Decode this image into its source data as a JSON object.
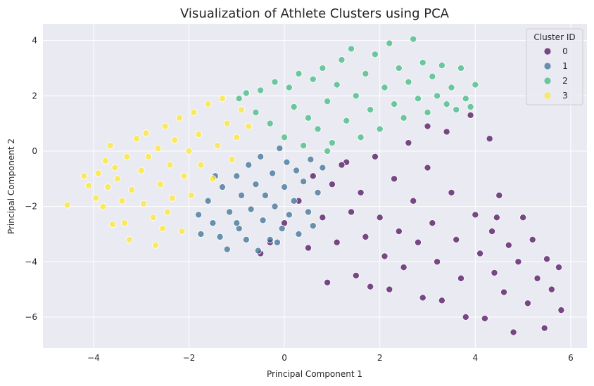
{
  "chart_data": {
    "type": "scatter",
    "title": "Visualization of Athlete Clusters using PCA",
    "xlabel": "Principal Component 1",
    "ylabel": "Principal Component 2",
    "xlim": [
      -5.06,
      6.34
    ],
    "ylim": [
      -7.12,
      4.6
    ],
    "xticks": [
      -4,
      -2,
      0,
      2,
      4,
      6
    ],
    "xtick_labels": [
      "−4",
      "−2",
      "0",
      "2",
      "4",
      "6"
    ],
    "yticks": [
      -6,
      -4,
      -2,
      0,
      2,
      4
    ],
    "ytick_labels": [
      "−6",
      "−4",
      "−2",
      "0",
      "2",
      "4"
    ],
    "grid": true,
    "background": "#eaeaf2",
    "legend": {
      "title": "Cluster ID",
      "placement": "top-right"
    },
    "series": [
      {
        "name": "0",
        "color": "#440154",
        "points": [
          [
            -0.5,
            -3.7
          ],
          [
            -0.3,
            -3.3
          ],
          [
            0.0,
            -2.6
          ],
          [
            0.3,
            -1.8
          ],
          [
            0.5,
            -3.5
          ],
          [
            0.6,
            -0.9
          ],
          [
            0.8,
            -2.4
          ],
          [
            0.9,
            -4.75
          ],
          [
            1.0,
            -1.2
          ],
          [
            1.1,
            -3.3
          ],
          [
            1.3,
            -0.4
          ],
          [
            1.4,
            -2.2
          ],
          [
            1.5,
            -4.5
          ],
          [
            1.6,
            -1.5
          ],
          [
            1.7,
            -3.1
          ],
          [
            1.8,
            -4.9
          ],
          [
            1.9,
            -0.2
          ],
          [
            2.0,
            -2.4
          ],
          [
            2.1,
            -3.8
          ],
          [
            2.2,
            -5.0
          ],
          [
            2.3,
            -1.0
          ],
          [
            2.4,
            -2.9
          ],
          [
            2.5,
            -4.2
          ],
          [
            2.6,
            0.3
          ],
          [
            2.7,
            -1.8
          ],
          [
            2.8,
            -3.3
          ],
          [
            2.9,
            -5.3
          ],
          [
            3.0,
            -0.6
          ],
          [
            3.1,
            -2.6
          ],
          [
            3.2,
            -4.0
          ],
          [
            3.3,
            -5.4
          ],
          [
            3.4,
            0.7
          ],
          [
            3.5,
            -1.5
          ],
          [
            3.6,
            -3.2
          ],
          [
            3.7,
            -4.6
          ],
          [
            3.8,
            -6.0
          ],
          [
            3.9,
            1.3
          ],
          [
            4.0,
            -2.3
          ],
          [
            4.1,
            -3.7
          ],
          [
            4.2,
            -6.05
          ],
          [
            4.3,
            0.45
          ],
          [
            4.35,
            -2.9
          ],
          [
            4.4,
            -4.4
          ],
          [
            4.5,
            -1.6
          ],
          [
            4.6,
            -5.1
          ],
          [
            4.7,
            -3.4
          ],
          [
            4.8,
            -6.55
          ],
          [
            4.9,
            -4.0
          ],
          [
            5.0,
            -2.4
          ],
          [
            5.1,
            -5.5
          ],
          [
            5.2,
            -3.2
          ],
          [
            5.3,
            -4.6
          ],
          [
            5.45,
            -6.4
          ],
          [
            5.5,
            -3.9
          ],
          [
            5.6,
            -5.0
          ],
          [
            5.75,
            -4.2
          ],
          [
            5.8,
            -5.75
          ],
          [
            3.0,
            0.9
          ],
          [
            1.2,
            -0.5
          ],
          [
            4.45,
            -2.4
          ]
        ]
      },
      {
        "name": "1",
        "color": "#31688e",
        "points": [
          [
            -1.8,
            -2.3
          ],
          [
            -1.75,
            -3.0
          ],
          [
            -1.6,
            -1.8
          ],
          [
            -1.5,
            -2.6
          ],
          [
            -1.35,
            -3.1
          ],
          [
            -1.3,
            -1.3
          ],
          [
            -1.2,
            -3.55
          ],
          [
            -1.15,
            -2.2
          ],
          [
            -1.0,
            -0.9
          ],
          [
            -0.95,
            -2.8
          ],
          [
            -0.9,
            -1.6
          ],
          [
            -0.8,
            -3.2
          ],
          [
            -0.75,
            -0.5
          ],
          [
            -0.7,
            -2.1
          ],
          [
            -0.6,
            -1.2
          ],
          [
            -0.55,
            -3.6
          ],
          [
            -0.5,
            -0.2
          ],
          [
            -0.45,
            -2.5
          ],
          [
            -0.4,
            -1.6
          ],
          [
            -0.3,
            -3.2
          ],
          [
            -0.25,
            -0.8
          ],
          [
            -0.2,
            -2.0
          ],
          [
            -0.1,
            0.1
          ],
          [
            -0.05,
            -2.8
          ],
          [
            0.0,
            -1.3
          ],
          [
            0.05,
            -0.4
          ],
          [
            0.1,
            -2.3
          ],
          [
            0.2,
            -1.8
          ],
          [
            0.25,
            -0.7
          ],
          [
            0.3,
            -3.0
          ],
          [
            0.4,
            -1.1
          ],
          [
            0.5,
            -2.2
          ],
          [
            0.55,
            -0.3
          ],
          [
            0.7,
            -1.5
          ],
          [
            0.8,
            -0.6
          ],
          [
            -1.45,
            -0.9
          ],
          [
            -1.0,
            -2.6
          ],
          [
            -0.15,
            -3.3
          ],
          [
            0.6,
            -2.7
          ]
        ]
      },
      {
        "name": "2",
        "color": "#35b779",
        "points": [
          [
            -0.95,
            1.9
          ],
          [
            -0.8,
            2.1
          ],
          [
            -0.6,
            1.4
          ],
          [
            -0.5,
            2.2
          ],
          [
            -0.3,
            1.0
          ],
          [
            -0.2,
            2.5
          ],
          [
            0.0,
            0.5
          ],
          [
            0.1,
            2.3
          ],
          [
            0.2,
            1.6
          ],
          [
            0.3,
            2.8
          ],
          [
            0.4,
            0.2
          ],
          [
            0.5,
            1.2
          ],
          [
            0.6,
            2.6
          ],
          [
            0.7,
            0.8
          ],
          [
            0.8,
            3.0
          ],
          [
            0.9,
            1.8
          ],
          [
            1.0,
            0.3
          ],
          [
            1.1,
            2.4
          ],
          [
            1.2,
            3.3
          ],
          [
            1.3,
            1.1
          ],
          [
            1.4,
            3.7
          ],
          [
            1.5,
            2.0
          ],
          [
            1.6,
            0.5
          ],
          [
            1.7,
            2.8
          ],
          [
            1.8,
            1.5
          ],
          [
            1.9,
            3.5
          ],
          [
            2.0,
            0.8
          ],
          [
            2.1,
            2.3
          ],
          [
            2.2,
            3.9
          ],
          [
            2.3,
            1.7
          ],
          [
            2.4,
            3.0
          ],
          [
            2.5,
            1.2
          ],
          [
            2.6,
            2.5
          ],
          [
            2.7,
            4.05
          ],
          [
            2.8,
            1.9
          ],
          [
            2.9,
            3.2
          ],
          [
            3.0,
            1.4
          ],
          [
            3.1,
            2.7
          ],
          [
            3.2,
            2.0
          ],
          [
            3.3,
            3.1
          ],
          [
            3.4,
            1.7
          ],
          [
            3.5,
            2.3
          ],
          [
            3.6,
            1.5
          ],
          [
            3.7,
            3.0
          ],
          [
            3.8,
            1.9
          ],
          [
            4.0,
            2.4
          ],
          [
            3.9,
            1.6
          ],
          [
            0.9,
            0.0
          ]
        ]
      },
      {
        "name": "3",
        "color": "#fde725",
        "points": [
          [
            -4.55,
            -1.95
          ],
          [
            -4.2,
            -0.9
          ],
          [
            -4.1,
            -1.25
          ],
          [
            -3.95,
            -1.7
          ],
          [
            -3.9,
            -0.8
          ],
          [
            -3.8,
            -2.0
          ],
          [
            -3.75,
            -0.35
          ],
          [
            -3.7,
            -1.3
          ],
          [
            -3.6,
            -2.65
          ],
          [
            -3.55,
            -0.6
          ],
          [
            -3.5,
            -1.0
          ],
          [
            -3.4,
            -1.8
          ],
          [
            -3.35,
            -2.6
          ],
          [
            -3.3,
            -0.2
          ],
          [
            -3.25,
            -3.2
          ],
          [
            -3.2,
            -1.4
          ],
          [
            -3.1,
            0.45
          ],
          [
            -3.0,
            -0.7
          ],
          [
            -2.95,
            -1.9
          ],
          [
            -2.9,
            0.65
          ],
          [
            -2.85,
            -0.2
          ],
          [
            -2.75,
            -2.4
          ],
          [
            -2.7,
            -3.4
          ],
          [
            -2.65,
            0.1
          ],
          [
            -2.6,
            -1.2
          ],
          [
            -2.55,
            -2.8
          ],
          [
            -2.5,
            0.9
          ],
          [
            -2.4,
            -0.5
          ],
          [
            -2.35,
            -1.7
          ],
          [
            -2.3,
            0.4
          ],
          [
            -2.2,
            1.2
          ],
          [
            -2.15,
            -2.9
          ],
          [
            -2.1,
            -0.9
          ],
          [
            -2.0,
            0.0
          ],
          [
            -1.95,
            -1.6
          ],
          [
            -1.9,
            1.4
          ],
          [
            -1.8,
            0.6
          ],
          [
            -1.75,
            -0.5
          ],
          [
            -1.6,
            1.7
          ],
          [
            -1.5,
            -1.0
          ],
          [
            -1.4,
            0.2
          ],
          [
            -1.3,
            1.9
          ],
          [
            -1.2,
            1.0
          ],
          [
            -1.0,
            0.5
          ],
          [
            -0.9,
            1.5
          ],
          [
            -0.75,
            0.9
          ],
          [
            -1.1,
            -0.3
          ],
          [
            -3.65,
            0.2
          ],
          [
            -2.45,
            -2.2
          ]
        ]
      }
    ]
  }
}
